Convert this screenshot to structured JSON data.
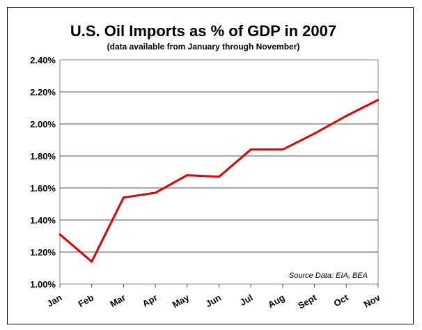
{
  "chart_data": {
    "type": "line",
    "title": "U.S. Oil Imports as % of GDP in 2007",
    "subtitle": "(data available from January through November)",
    "source_note": "Source Data: EIA, BEA",
    "categories": [
      "Jan",
      "Feb",
      "Mar",
      "Apr",
      "May",
      "Jun",
      "Jul",
      "Aug",
      "Sept",
      "Oct",
      "Nov"
    ],
    "series": [
      {
        "values": [
          1.31,
          1.14,
          1.54,
          1.57,
          1.68,
          1.67,
          1.84,
          1.84,
          1.94,
          2.05,
          2.15
        ]
      }
    ],
    "y_ticks": [
      "1.00%",
      "1.20%",
      "1.40%",
      "1.60%",
      "1.80%",
      "2.00%",
      "2.20%",
      "2.40%"
    ],
    "ylim": [
      1.0,
      2.4
    ],
    "grid": true,
    "line_color": "#e00000"
  }
}
